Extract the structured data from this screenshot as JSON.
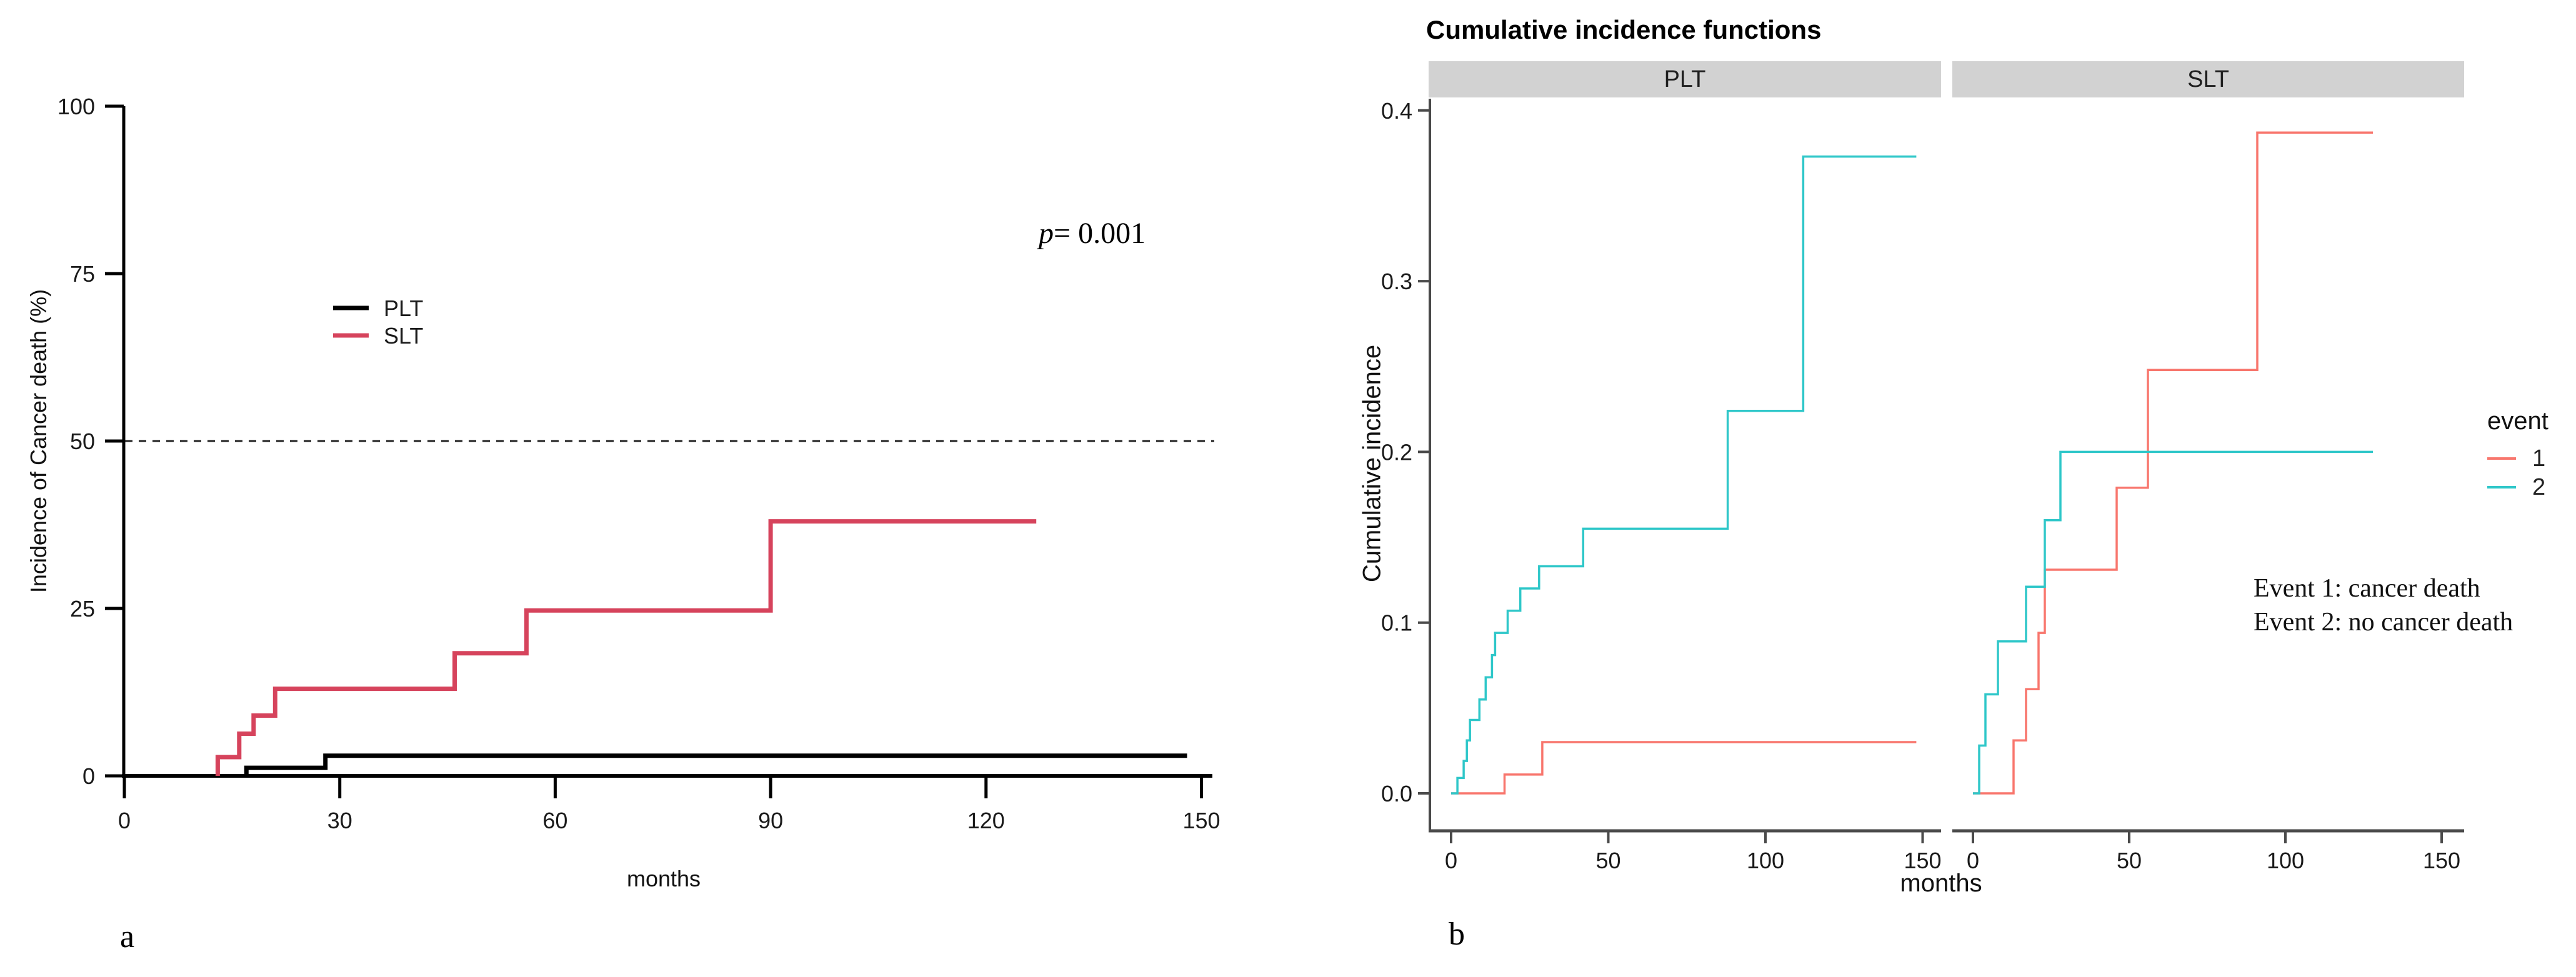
{
  "chart_data": [
    {
      "id": "panel-a",
      "type": "line",
      "subtype": "step",
      "panel_label": "a",
      "xlabel": "months",
      "ylabel": "Incidence of Cancer death (%)",
      "xlim": [
        0,
        150
      ],
      "ylim": [
        0,
        100
      ],
      "xticks": [
        0,
        30,
        60,
        90,
        120,
        150
      ],
      "yticks": [
        0,
        25,
        50,
        75,
        100
      ],
      "grid": false,
      "p_label": "p",
      "p_value_text": "= 0.001",
      "reference_line": {
        "y": 50,
        "style": "dashed"
      },
      "legend_position": "inside-upper-left",
      "series": [
        {
          "name": "PLT",
          "color": "#000000",
          "points": [
            [
              17,
              0
            ],
            [
              17,
              1.2
            ],
            [
              28,
              1.2
            ],
            [
              28,
              3
            ],
            [
              148,
              3
            ]
          ]
        },
        {
          "name": "SLT",
          "color": "#d6435c",
          "points": [
            [
              13,
              0
            ],
            [
              13,
              2.8
            ],
            [
              16,
              2.8
            ],
            [
              16,
              6.3
            ],
            [
              18,
              6.3
            ],
            [
              18,
              9
            ],
            [
              21,
              9
            ],
            [
              21,
              13
            ],
            [
              46,
              13
            ],
            [
              46,
              18.3
            ],
            [
              56,
              18.3
            ],
            [
              56,
              24.7
            ],
            [
              90,
              24.7
            ],
            [
              90,
              38
            ],
            [
              127,
              38
            ]
          ]
        }
      ]
    },
    {
      "id": "panel-b",
      "type": "line",
      "subtype": "step-faceted",
      "panel_label": "b",
      "title": "Cumulative incidence functions",
      "xlabel": "months",
      "ylabel": "Cumulative incidence",
      "xlim": [
        0,
        155
      ],
      "ylim": [
        0,
        0.4
      ],
      "xticks": [
        0,
        50,
        100,
        150
      ],
      "ytick_labels": [
        "0.0",
        "0.1",
        "0.2",
        "0.3",
        "0.4"
      ],
      "ytick_values": [
        0,
        0.1,
        0.2,
        0.3,
        0.4
      ],
      "grid": false,
      "strip_color": "#d2d2d2",
      "axis_color": "#4a4a4a",
      "facets": [
        {
          "label": "PLT",
          "series": [
            {
              "event": "1",
              "color": "#f8766d",
              "points": [
                [
                  0,
                  0
                ],
                [
                  17,
                  0
                ],
                [
                  17,
                  0.011
                ],
                [
                  29,
                  0.011
                ],
                [
                  29,
                  0.03
                ],
                [
                  148,
                  0.03
                ]
              ]
            },
            {
              "event": "2",
              "color": "#2fc7c9",
              "points": [
                [
                  0,
                  0
                ],
                [
                  2,
                  0
                ],
                [
                  2,
                  0.009
                ],
                [
                  4,
                  0.009
                ],
                [
                  4,
                  0.019
                ],
                [
                  5,
                  0.019
                ],
                [
                  5,
                  0.031
                ],
                [
                  6,
                  0.031
                ],
                [
                  6,
                  0.043
                ],
                [
                  9,
                  0.043
                ],
                [
                  9,
                  0.055
                ],
                [
                  11,
                  0.055
                ],
                [
                  11,
                  0.068
                ],
                [
                  13,
                  0.068
                ],
                [
                  13,
                  0.081
                ],
                [
                  14,
                  0.081
                ],
                [
                  14,
                  0.094
                ],
                [
                  18,
                  0.094
                ],
                [
                  18,
                  0.107
                ],
                [
                  22,
                  0.107
                ],
                [
                  22,
                  0.12
                ],
                [
                  28,
                  0.12
                ],
                [
                  28,
                  0.133
                ],
                [
                  42,
                  0.133
                ],
                [
                  42,
                  0.155
                ],
                [
                  88,
                  0.155
                ],
                [
                  88,
                  0.224
                ],
                [
                  112,
                  0.224
                ],
                [
                  112,
                  0.373
                ],
                [
                  148,
                  0.373
                ]
              ]
            }
          ]
        },
        {
          "label": "SLT",
          "series": [
            {
              "event": "1",
              "color": "#f8766d",
              "points": [
                [
                  0,
                  0
                ],
                [
                  13,
                  0
                ],
                [
                  13,
                  0.031
                ],
                [
                  17,
                  0.031
                ],
                [
                  17,
                  0.061
                ],
                [
                  21,
                  0.061
                ],
                [
                  21,
                  0.094
                ],
                [
                  23,
                  0.094
                ],
                [
                  23,
                  0.131
                ],
                [
                  46,
                  0.131
                ],
                [
                  46,
                  0.179
                ],
                [
                  56,
                  0.179
                ],
                [
                  56,
                  0.248
                ],
                [
                  91,
                  0.248
                ],
                [
                  91,
                  0.387
                ],
                [
                  128,
                  0.387
                ]
              ]
            },
            {
              "event": "2",
              "color": "#2fc7c9",
              "points": [
                [
                  0,
                  0
                ],
                [
                  2,
                  0
                ],
                [
                  2,
                  0.028
                ],
                [
                  4,
                  0.028
                ],
                [
                  4,
                  0.058
                ],
                [
                  8,
                  0.058
                ],
                [
                  8,
                  0.089
                ],
                [
                  17,
                  0.089
                ],
                [
                  17,
                  0.121
                ],
                [
                  23,
                  0.121
                ],
                [
                  23,
                  0.16
                ],
                [
                  28,
                  0.16
                ],
                [
                  28,
                  0.2
                ],
                [
                  128,
                  0.2
                ]
              ]
            }
          ]
        }
      ],
      "legend": {
        "title": "event",
        "items": [
          {
            "label": "1",
            "color": "#f8766d"
          },
          {
            "label": "2",
            "color": "#2fc7c9"
          }
        ]
      },
      "annotation_lines": [
        "Event 1: cancer death",
        "Event 2: no cancer death"
      ]
    }
  ]
}
